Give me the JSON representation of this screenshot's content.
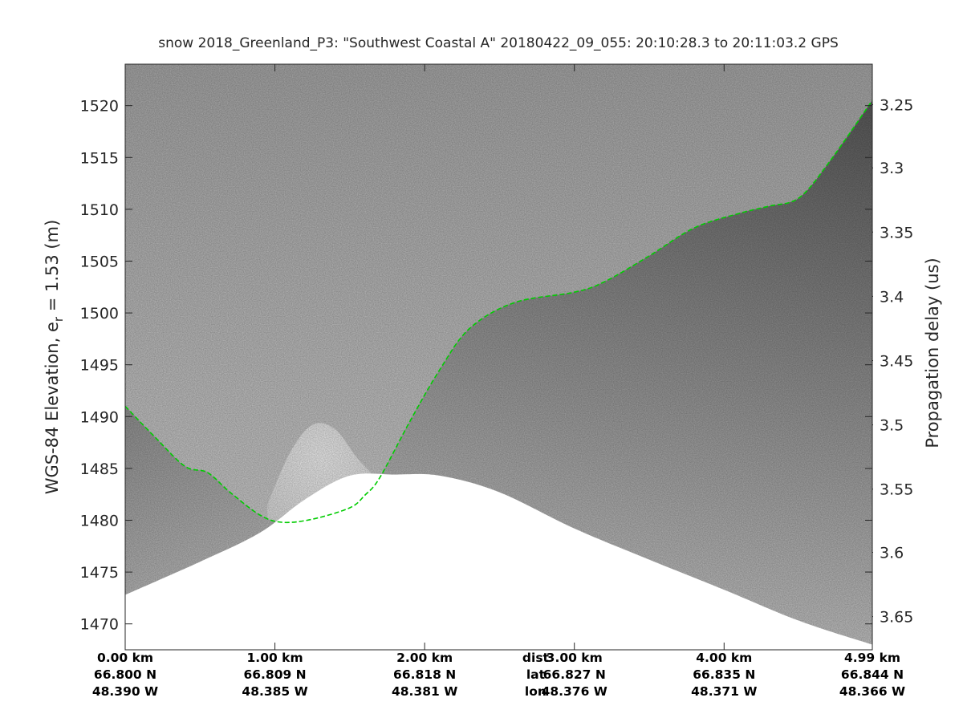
{
  "chart_data": {
    "type": "radar_echogram",
    "title": "snow 2018_Greenland_P3: \"Southwest Coastal A\"  20180422_09_055: 20:10:28.3 to 20:11:03.2 GPS",
    "ylabel_left_main": "WGS-84 Elevation, e",
    "ylabel_left_sub": "r",
    "ylabel_left_tail": " = 1.53 (m)",
    "ylabel_right": "Propagation delay (us)",
    "x_range_km": [
      0,
      4.99
    ],
    "ylim": [
      1467.5,
      1524
    ],
    "y_ticks": [
      1470,
      1475,
      1480,
      1485,
      1490,
      1495,
      1500,
      1505,
      1510,
      1515,
      1520
    ],
    "right_ticks": [
      {
        "label": "3.25",
        "elev": 1520.1
      },
      {
        "label": "3.3",
        "elev": 1514.0
      },
      {
        "label": "3.35",
        "elev": 1507.8
      },
      {
        "label": "3.4",
        "elev": 1501.6
      },
      {
        "label": "3.45",
        "elev": 1495.4
      },
      {
        "label": "3.5",
        "elev": 1489.2
      },
      {
        "label": "3.55",
        "elev": 1483.0
      },
      {
        "label": "3.6",
        "elev": 1476.9
      },
      {
        "label": "3.65",
        "elev": 1470.7
      }
    ],
    "x_ticks": [
      {
        "km": 0,
        "dist": "0.00 km",
        "lat": "66.800 N",
        "lon": "48.390 W"
      },
      {
        "km": 1,
        "dist": "1.00 km",
        "lat": "66.809 N",
        "lon": "48.385 W"
      },
      {
        "km": 2,
        "dist": "2.00 km",
        "lat": "66.818 N",
        "lon": "48.381 W"
      },
      {
        "km": 3,
        "dist": "3.00 km",
        "lat": "66.827 N",
        "lon": "48.376 W"
      },
      {
        "km": 4,
        "dist": "4.00 km",
        "lat": "66.835 N",
        "lon": "48.371 W"
      },
      {
        "km": 4.99,
        "dist": "4.99 km",
        "lat": "66.844 N",
        "lon": "48.366 W"
      }
    ],
    "x_row_labels": {
      "km": 2.5,
      "dist": "dist",
      "lat": "lat",
      "lon": "lon"
    },
    "surface_pick": {
      "color": "#00cc00",
      "x_km": [
        0,
        0.2,
        0.4,
        0.55,
        0.7,
        0.9,
        1.05,
        1.25,
        1.5,
        1.6,
        1.7,
        1.9,
        2.1,
        2.3,
        2.6,
        3.0,
        3.2,
        3.5,
        3.8,
        4.1,
        4.3,
        4.5,
        4.7,
        4.99
      ],
      "elevation_m": [
        1491.0,
        1488.0,
        1485.2,
        1484.6,
        1482.7,
        1480.5,
        1479.8,
        1480.1,
        1481.2,
        1482.4,
        1484.1,
        1489.5,
        1494.5,
        1498.5,
        1501.0,
        1502.0,
        1503.0,
        1505.5,
        1508.2,
        1509.6,
        1510.3,
        1511.1,
        1514.5,
        1520.5
      ]
    },
    "no_data_boundary": {
      "x_km": [
        0,
        0.5,
        0.9,
        1.2,
        1.5,
        1.8,
        2.1,
        2.5,
        3.0,
        3.5,
        4.0,
        4.5,
        4.99
      ],
      "elevation_m": [
        1472.8,
        1476.0,
        1478.8,
        1482.0,
        1484.3,
        1484.4,
        1484.3,
        1482.7,
        1479.2,
        1476.2,
        1473.3,
        1470.3,
        1468.0
      ]
    },
    "legend": "none",
    "grid": false
  }
}
